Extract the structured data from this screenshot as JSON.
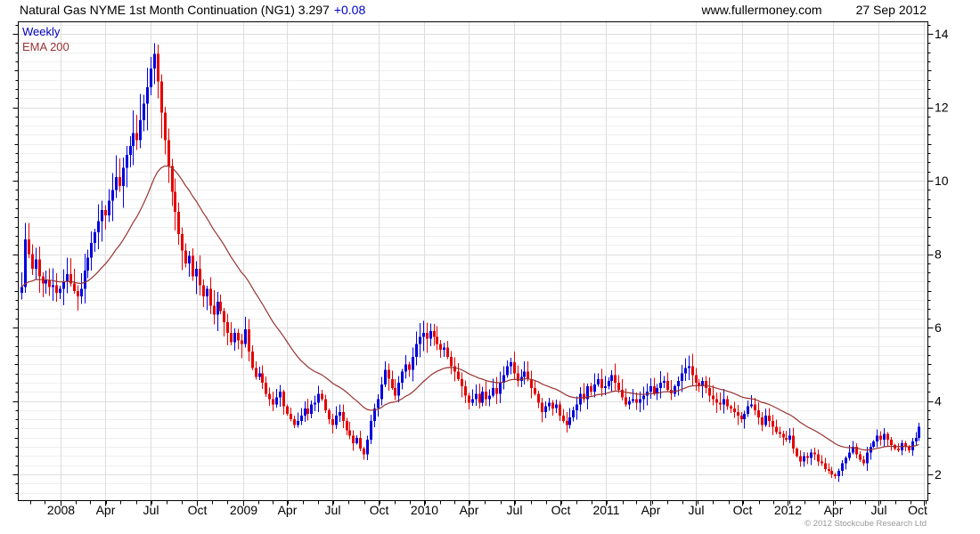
{
  "header": {
    "instrument_and_price": "Natural Gas NYME 1st Month Continuation (NG1) 3.297",
    "change": "+0.08",
    "website": "www.fullermoney.com",
    "date": "27 Sep 2012"
  },
  "legend": {
    "timeframe": "Weekly",
    "overlay": "EMA 200"
  },
  "footer": {
    "copyright": "© 2012 Stockcube Research Ltd"
  },
  "colors": {
    "up": "#0000e0",
    "down": "#e60000",
    "ema": "#993333",
    "grid_minor": "#eeeeee",
    "grid_major": "#dddddd",
    "grid_vertical": "#dddddd",
    "axis": "#000000",
    "title_change": "#0000cc",
    "copyright": "#999999"
  },
  "chart_data": {
    "type": "candlestick",
    "title": "Natural Gas NYME 1st Month Continuation (NG1)",
    "timeframe": "weekly",
    "last_price": 3.297,
    "change": 0.08,
    "start_week": "2007-10-15",
    "first_open": 6.95,
    "y_axis": {
      "side": "right",
      "ticks": [
        2,
        4,
        6,
        8,
        10,
        12,
        14
      ],
      "minor_step": 0.25,
      "range": [
        1.3,
        14.31
      ]
    },
    "x_axis": {
      "ticks": [
        {
          "label": "2008",
          "week": 11.1
        },
        {
          "label": "Apr",
          "week": 24.1
        },
        {
          "label": "Jul",
          "week": 37.1
        },
        {
          "label": "Oct",
          "week": 50.3
        },
        {
          "label": "2009",
          "week": 63.4
        },
        {
          "label": "Apr",
          "week": 76.1
        },
        {
          "label": "Jul",
          "week": 89.1
        },
        {
          "label": "Oct",
          "week": 102.3
        },
        {
          "label": "2010",
          "week": 115.4
        },
        {
          "label": "Apr",
          "week": 128.1
        },
        {
          "label": "Jul",
          "week": 141.1
        },
        {
          "label": "Oct",
          "week": 154.3
        },
        {
          "label": "2011",
          "week": 167.4
        },
        {
          "label": "Apr",
          "week": 180.1
        },
        {
          "label": "Jul",
          "week": 193.1
        },
        {
          "label": "Oct",
          "week": 206.3
        },
        {
          "label": "2012",
          "week": 219.4
        },
        {
          "label": "Apr",
          "week": 232.3
        },
        {
          "label": "Jul",
          "week": 245.3
        },
        {
          "label": "Oct",
          "week": 258.4
        }
      ]
    },
    "closes": [
      7.1,
      8.4,
      8.0,
      7.6,
      7.85,
      7.4,
      7.2,
      7.3,
      7.1,
      7.15,
      6.95,
      7.05,
      7.25,
      7.45,
      7.2,
      7.0,
      6.85,
      7.05,
      7.55,
      7.9,
      8.3,
      8.6,
      8.9,
      9.2,
      9.05,
      9.45,
      9.75,
      10.1,
      9.85,
      10.35,
      10.7,
      10.95,
      11.3,
      11.1,
      11.65,
      12.1,
      12.55,
      13.05,
      13.45,
      12.7,
      11.85,
      11.1,
      10.4,
      9.7,
      9.15,
      8.55,
      8.1,
      7.75,
      7.95,
      7.4,
      7.6,
      7.15,
      6.85,
      7.05,
      6.6,
      6.35,
      6.7,
      6.45,
      6.15,
      5.85,
      5.6,
      5.85,
      5.65,
      5.55,
      5.95,
      5.35,
      4.9,
      4.65,
      4.75,
      4.5,
      4.2,
      4.05,
      3.9,
      4.1,
      4.25,
      3.85,
      3.65,
      3.5,
      3.35,
      3.45,
      3.6,
      3.8,
      3.65,
      3.9,
      3.95,
      4.2,
      4.05,
      3.75,
      3.5,
      3.35,
      3.6,
      3.7,
      3.45,
      3.2,
      3.05,
      2.85,
      3.0,
      2.7,
      2.55,
      2.95,
      3.45,
      3.8,
      4.05,
      4.45,
      4.85,
      4.6,
      4.35,
      4.15,
      4.5,
      4.8,
      5.0,
      4.85,
      5.2,
      5.55,
      5.75,
      5.85,
      5.7,
      5.9,
      5.75,
      5.55,
      5.4,
      5.45,
      5.2,
      4.95,
      4.8,
      4.6,
      4.4,
      4.15,
      3.95,
      4.05,
      4.2,
      3.95,
      4.25,
      4.05,
      4.15,
      4.35,
      4.2,
      4.5,
      4.7,
      4.95,
      5.05,
      4.75,
      4.55,
      4.65,
      4.8,
      4.6,
      4.35,
      4.2,
      3.95,
      3.7,
      3.85,
      3.95,
      3.8,
      3.9,
      3.6,
      3.45,
      3.35,
      3.55,
      3.75,
      3.9,
      4.2,
      4.05,
      4.4,
      4.25,
      4.45,
      4.6,
      4.35,
      4.4,
      4.55,
      4.7,
      4.5,
      4.3,
      4.1,
      3.9,
      4.0,
      4.05,
      3.95,
      4.05,
      4.15,
      4.25,
      4.4,
      4.2,
      4.35,
      4.5,
      4.55,
      4.3,
      4.2,
      4.4,
      4.55,
      4.75,
      4.9,
      4.95,
      4.7,
      4.5,
      4.4,
      4.55,
      4.35,
      4.15,
      4.05,
      3.95,
      3.9,
      4.05,
      3.85,
      3.8,
      3.7,
      3.6,
      3.5,
      3.65,
      3.85,
      3.9,
      3.75,
      3.55,
      3.35,
      3.6,
      3.45,
      3.3,
      3.15,
      3.1,
      3.0,
      2.95,
      3.05,
      2.7,
      2.5,
      2.35,
      2.5,
      2.45,
      2.6,
      2.55,
      2.35,
      2.3,
      2.15,
      2.1,
      2.0,
      1.95,
      2.1,
      2.3,
      2.45,
      2.6,
      2.75,
      2.55,
      2.4,
      2.3,
      2.6,
      2.75,
      2.9,
      3.05,
      2.95,
      3.1,
      2.95,
      2.8,
      2.7,
      2.65,
      2.85,
      2.75,
      2.65,
      2.9,
      3.0,
      3.297
    ],
    "spikes": [
      {
        "week": 1,
        "high": 8.65
      },
      {
        "week": 38,
        "high": 13.69
      },
      {
        "week": 98,
        "low": 2.4
      },
      {
        "week": 117,
        "high": 6.02
      },
      {
        "week": 140,
        "high": 5.17
      },
      {
        "week": 191,
        "high": 5.02
      },
      {
        "week": 233,
        "low": 1.9
      }
    ],
    "ema": {
      "label": "EMA 200",
      "period_weeks": 29
    }
  }
}
